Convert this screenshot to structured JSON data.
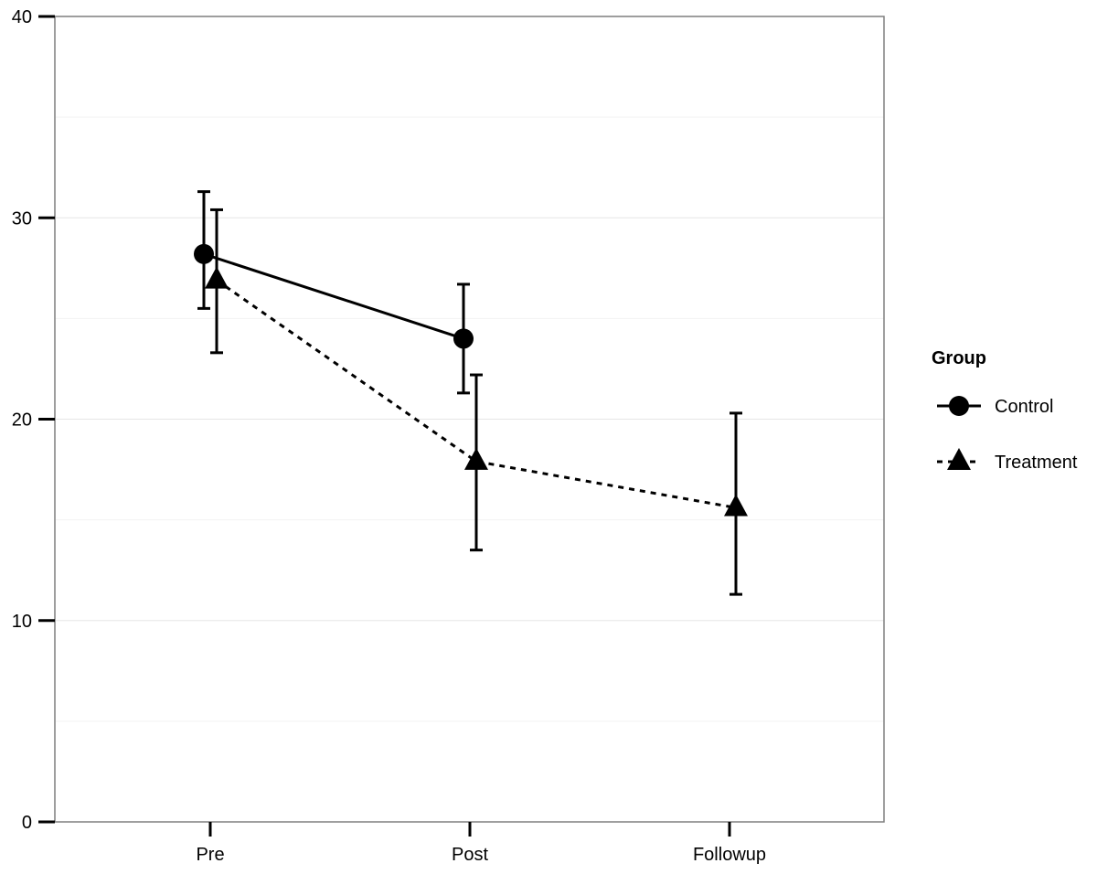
{
  "chart_data": {
    "type": "line",
    "title": "",
    "xlabel": "",
    "ylabel": "",
    "categories": [
      "Pre",
      "Post",
      "Followup"
    ],
    "ylim": [
      0,
      40
    ],
    "yticks": [
      0,
      10,
      20,
      30,
      40
    ],
    "grid": true,
    "legend": {
      "title": "Group",
      "position": "right"
    },
    "series": [
      {
        "name": "Control",
        "marker": "circle",
        "linestyle": "solid",
        "color": "#000000",
        "values": [
          28.2,
          24.0,
          null
        ],
        "error_low": [
          25.5,
          21.3,
          null
        ],
        "error_high": [
          31.3,
          26.7,
          null
        ]
      },
      {
        "name": "Treatment",
        "marker": "triangle",
        "linestyle": "dashed",
        "color": "#000000",
        "values": [
          26.9,
          17.9,
          15.6
        ],
        "error_low": [
          23.3,
          13.5,
          11.3
        ],
        "error_high": [
          30.4,
          22.2,
          20.3
        ]
      }
    ]
  }
}
